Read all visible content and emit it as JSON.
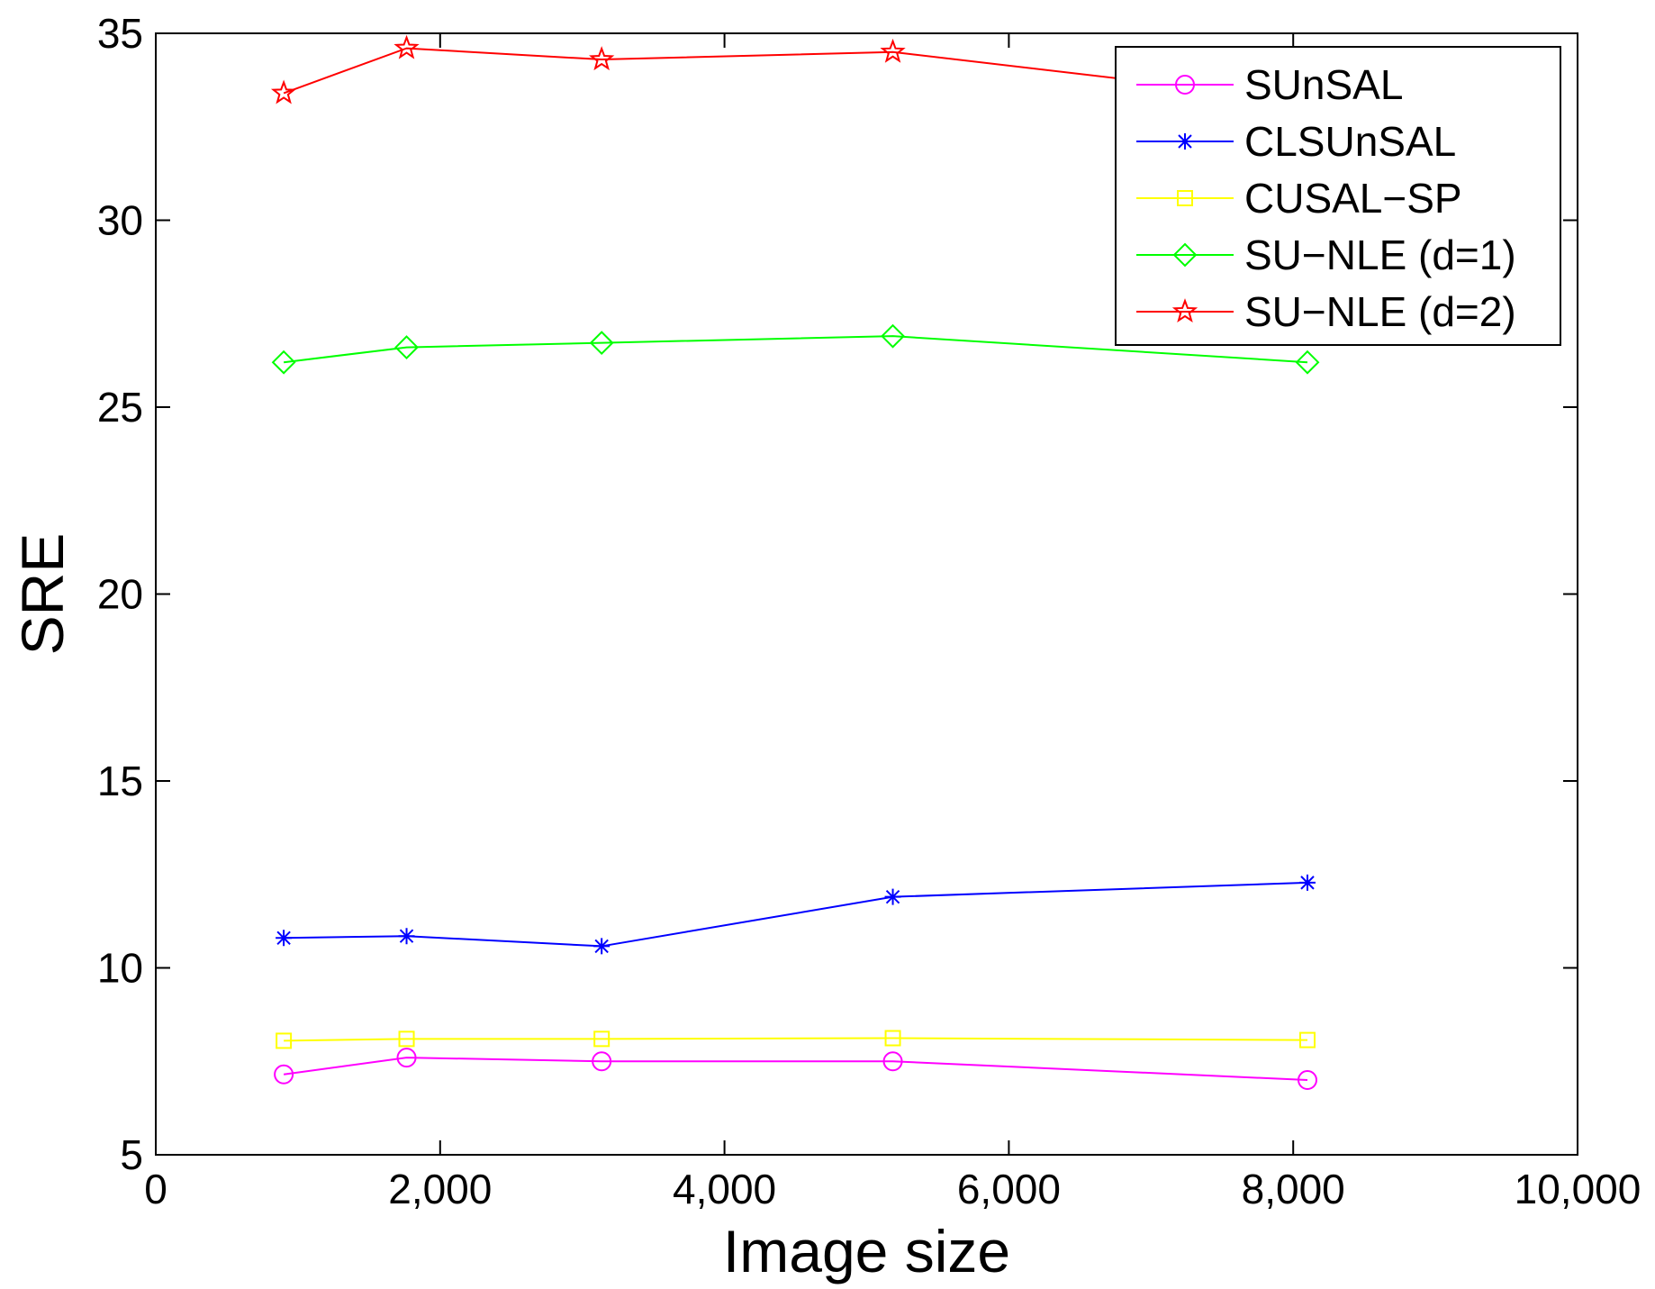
{
  "chart_data": {
    "type": "line",
    "title": "",
    "xlabel": "Image size",
    "ylabel": "SRE",
    "xlim": [
      0,
      10000
    ],
    "ylim": [
      5,
      35
    ],
    "xticks": [
      0,
      2000,
      4000,
      6000,
      8000,
      10000
    ],
    "xtick_labels": [
      "0",
      "2,000",
      "4,000",
      "6,000",
      "8,000",
      "10,000"
    ],
    "yticks": [
      5,
      10,
      15,
      20,
      25,
      30,
      35
    ],
    "ytick_labels": [
      "5",
      "10",
      "15",
      "20",
      "25",
      "30",
      "35"
    ],
    "grid": false,
    "legend_position": "top-right",
    "x": [
      900,
      1764,
      3136,
      5184,
      8100
    ],
    "series": [
      {
        "name": "SUnSAL",
        "color": "#ff00ff",
        "marker": "circle",
        "values": [
          7.15,
          7.6,
          7.5,
          7.5,
          7.0
        ]
      },
      {
        "name": "CLSUnSAL",
        "color": "#0000ff",
        "marker": "asterisk",
        "values": [
          10.8,
          10.85,
          10.58,
          11.9,
          12.28
        ]
      },
      {
        "name": "CUSAL−SP",
        "color": "#ffff00",
        "marker": "square",
        "values": [
          8.05,
          8.1,
          8.1,
          8.12,
          8.07
        ]
      },
      {
        "name": "SU−NLE (d=1)",
        "color": "#00ff00",
        "marker": "diamond",
        "values": [
          26.2,
          26.6,
          26.72,
          26.9,
          26.2
        ]
      },
      {
        "name": "SU−NLE (d=2)",
        "color": "#ff0000",
        "marker": "star",
        "values": [
          33.4,
          34.6,
          34.3,
          34.5,
          33.2
        ]
      }
    ]
  }
}
